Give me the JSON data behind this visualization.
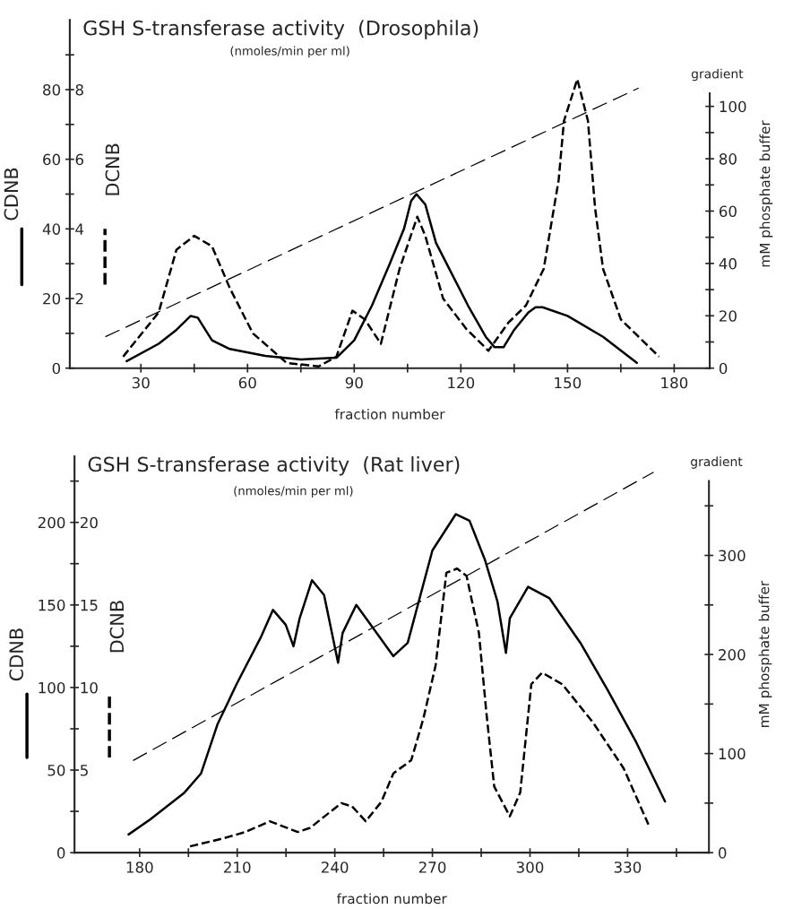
{
  "chart_data": [
    {
      "type": "line",
      "title": "GSH S-transferase activity  (Drosophila)",
      "subtitle": "(nmoles/min per ml)",
      "xlabel": "fraction number",
      "ylabel": "CDNB",
      "y3label": "DCNB",
      "y2label": "mM phosphate buffer",
      "annotations": [
        "gradient"
      ],
      "xlim": [
        10,
        190
      ],
      "xticks": [
        30,
        {
          "value": 45,
          "label": null
        },
        60,
        {
          "value": 75,
          "label": null
        },
        90,
        {
          "value": 105,
          "label": null
        },
        120,
        {
          "value": 135,
          "label": null
        },
        150,
        {
          "value": 165,
          "label": null
        },
        180
      ],
      "ylim": [
        0,
        100
      ],
      "yticks": [
        0,
        {
          "value": 10,
          "label": null
        },
        20,
        {
          "value": 30,
          "label": null
        },
        40,
        {
          "value": 50,
          "label": null
        },
        60,
        {
          "value": 70,
          "label": null
        },
        80,
        {
          "value": 90,
          "label": null
        }
      ],
      "y3lim": [
        0,
        10
      ],
      "y3ticks": [
        2,
        4,
        6,
        8
      ],
      "y2lim": [
        0,
        133
      ],
      "y2ticks": [
        0,
        {
          "value": 10,
          "label": null
        },
        20,
        {
          "value": 30,
          "label": null
        },
        40,
        {
          "value": 50,
          "label": null
        },
        60,
        {
          "value": 70,
          "label": null
        },
        80,
        {
          "value": 90,
          "label": null
        },
        100
      ],
      "series": [
        {
          "color": "#000000",
          "line_style": "solid",
          "x": [
            26,
            35,
            40,
            44,
            46,
            50,
            55,
            65,
            75,
            85,
            90,
            95,
            100,
            104,
            106,
            107.5,
            110,
            113,
            117,
            122,
            127,
            129.5,
            132,
            135,
            139,
            141,
            143,
            150,
            160,
            169.5
          ],
          "values": [
            2,
            7,
            11,
            15,
            14.5,
            8,
            5.5,
            3.5,
            2.5,
            3,
            8,
            18,
            30,
            40,
            48,
            50,
            47,
            36,
            28,
            18,
            9,
            6,
            6,
            11,
            16,
            17.5,
            17.5,
            15,
            9,
            1.5
          ]
        },
        {
          "axis": "y3",
          "color": "#000000",
          "line_style": "dashed",
          "x": [
            25,
            35,
            40,
            45,
            50,
            55,
            61.5,
            71,
            80,
            85,
            89.5,
            93,
            97.5,
            102.75,
            107.75,
            110,
            115,
            121.5,
            127.75,
            133.3,
            138.3,
            143.3,
            147.5,
            149,
            152.75,
            155.75,
            157.75,
            160,
            165,
            175.75
          ],
          "values": [
            0.33,
            1.6,
            3.4,
            3.8,
            3.5,
            2.3,
            1.0,
            0.15,
            0.05,
            0.33,
            1.65,
            1.4,
            0.7,
            2.85,
            4.35,
            3.8,
            2.0,
            1.13,
            0.5,
            1.3,
            1.8,
            2.85,
            5.4,
            7.1,
            8.3,
            7.1,
            4.6,
            2.85,
            1.4,
            0.33
          ]
        },
        {
          "axis": "y2",
          "color": "#000000",
          "line_style": "dashed",
          "x": [
            20,
            170
          ],
          "values": [
            12,
            107
          ]
        }
      ]
    },
    {
      "type": "line",
      "title": "GSH S-transferase activity  (Rat liver)",
      "subtitle": "(nmoles/min per ml)",
      "xlabel": "fraction number",
      "ylabel": "CDNB",
      "y3label": "DCNB",
      "y2label": "mM phosphate buffer",
      "annotations": [
        "gradient"
      ],
      "xlim": [
        160,
        355
      ],
      "xticks": [
        180,
        {
          "value": 195,
          "label": null
        },
        210,
        {
          "value": 225,
          "label": null
        },
        240,
        {
          "value": 255,
          "label": null
        },
        270,
        {
          "value": 285,
          "label": null
        },
        300,
        {
          "value": 315,
          "label": null
        },
        330,
        {
          "value": 345,
          "label": null
        }
      ],
      "ylim": [
        0,
        240
      ],
      "yticks": [
        0,
        {
          "value": 25,
          "label": null
        },
        50,
        {
          "value": 75,
          "label": null
        },
        100,
        {
          "value": 125,
          "label": null
        },
        150,
        {
          "value": 175,
          "label": null
        },
        200,
        {
          "value": 225,
          "label": null
        }
      ],
      "y3lim": [
        0,
        24
      ],
      "y3ticks": [
        5,
        10,
        15,
        20
      ],
      "y2lim": [
        0,
        400
      ],
      "y2ticks": [
        0,
        {
          "value": 50,
          "label": null
        },
        100,
        {
          "value": 150,
          "label": null
        },
        200,
        {
          "value": 250,
          "label": null
        },
        300,
        {
          "value": 350,
          "label": null
        }
      ],
      "series": [
        {
          "color": "#000000",
          "line_style": "solid",
          "x": [
            176.6,
            183.2,
            193.6,
            198.9,
            204,
            209.8,
            217.4,
            221,
            224.9,
            227.3,
            229.2,
            233,
            236.7,
            241,
            242.4,
            246.6,
            251.4,
            258,
            262.4,
            270,
            277.2,
            281.4,
            286.2,
            290,
            292.6,
            293.8,
            299.4,
            306,
            315.5,
            324,
            332.6,
            341.5
          ],
          "values": [
            11,
            20,
            36,
            48,
            78,
            102,
            131,
            147,
            138,
            125,
            142,
            165,
            156,
            115,
            133,
            150,
            137,
            119,
            127,
            183,
            205,
            201,
            177,
            152,
            121,
            142,
            161,
            154,
            127,
            98,
            67,
            31
          ]
        },
        {
          "axis": "y3",
          "color": "#000000",
          "line_style": "dashed",
          "x": [
            195.5,
            205.8,
            212.5,
            220,
            228.6,
            232.4,
            242,
            245.3,
            249.5,
            254.3,
            258,
            263.5,
            267.2,
            271,
            274.3,
            277.6,
            280.5,
            284.3,
            286.6,
            289,
            293.8,
            297,
            300.4,
            303.7,
            309.9,
            319.3,
            328.8,
            336.4
          ],
          "values": [
            0.38,
            0.87,
            1.25,
            1.9,
            1.25,
            1.5,
            3.0,
            2.8,
            1.9,
            3.07,
            4.8,
            5.6,
            8.1,
            11.35,
            16.95,
            17.2,
            16.75,
            13.3,
            8.45,
            4.0,
            2.2,
            3.65,
            10.2,
            10.9,
            10.2,
            7.9,
            5.1,
            1.7
          ]
        },
        {
          "axis": "y2",
          "color": "#000000",
          "line_style": "dashed",
          "x": [
            178,
            338
          ],
          "values": [
            93,
            384
          ]
        }
      ]
    }
  ]
}
